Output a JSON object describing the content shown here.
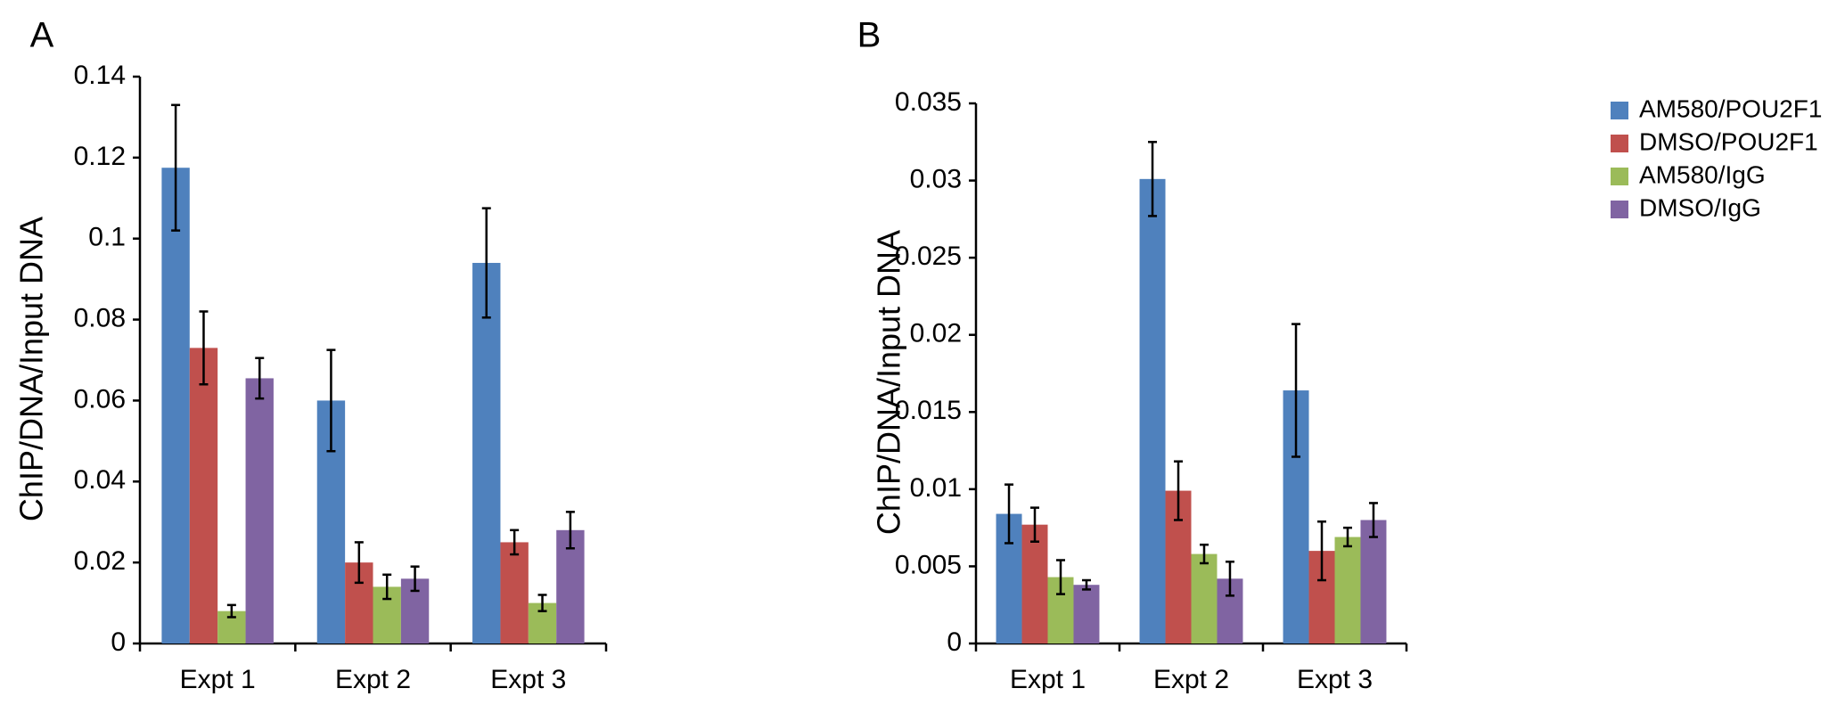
{
  "chart_data": [
    {
      "panel": "A",
      "type": "bar",
      "ylabel": "ChIP/DNA/Input DNA",
      "xlabel": "",
      "ylim": [
        0,
        0.14
      ],
      "yticks": [
        0,
        0.02,
        0.04,
        0.06,
        0.08,
        0.1,
        0.12,
        0.14
      ],
      "ytick_labels": [
        "0",
        "0.02",
        "0.04",
        "0.06",
        "0.08",
        "0.1",
        "0.12",
        "0.14"
      ],
      "categories": [
        "Expt 1",
        "Expt 2",
        "Expt 3"
      ],
      "series": [
        {
          "name": "AM580/POU2F1",
          "color": "#4F81BD",
          "values": [
            0.1175,
            0.06,
            0.094
          ],
          "errors": [
            0.0155,
            0.0125,
            0.0135
          ]
        },
        {
          "name": "DMSO/POU2F1",
          "color": "#C0504D",
          "values": [
            0.073,
            0.02,
            0.025
          ],
          "errors": [
            0.009,
            0.005,
            0.003
          ]
        },
        {
          "name": "AM580/IgG",
          "color": "#9BBB59",
          "values": [
            0.008,
            0.014,
            0.01
          ],
          "errors": [
            0.0015,
            0.003,
            0.002
          ]
        },
        {
          "name": "DMSO/IgG",
          "color": "#8064A2",
          "values": [
            0.0655,
            0.016,
            0.028
          ],
          "errors": [
            0.005,
            0.003,
            0.0045
          ]
        }
      ]
    },
    {
      "panel": "B",
      "type": "bar",
      "ylabel": "ChIP/DNA/Input DNA",
      "xlabel": "",
      "ylim": [
        0,
        0.035
      ],
      "yticks": [
        0,
        0.005,
        0.01,
        0.015,
        0.02,
        0.025,
        0.03,
        0.035
      ],
      "ytick_labels": [
        "0",
        "0.005",
        "0.01",
        "0.015",
        "0.02",
        "0.025",
        "0.03",
        "0.035"
      ],
      "categories": [
        "Expt 1",
        "Expt 2",
        "Expt 3"
      ],
      "legend_position": "top-right",
      "series": [
        {
          "name": "AM580/POU2F1",
          "color": "#4F81BD",
          "values": [
            0.0084,
            0.0301,
            0.0164
          ],
          "errors": [
            0.0019,
            0.0024,
            0.0043
          ]
        },
        {
          "name": "DMSO/POU2F1",
          "color": "#C0504D",
          "values": [
            0.0077,
            0.0099,
            0.006
          ],
          "errors": [
            0.0011,
            0.0019,
            0.0019
          ]
        },
        {
          "name": "AM580/IgG",
          "color": "#9BBB59",
          "values": [
            0.0043,
            0.0058,
            0.0069
          ],
          "errors": [
            0.0011,
            0.0006,
            0.0006
          ]
        },
        {
          "name": "DMSO/IgG",
          "color": "#8064A2",
          "values": [
            0.0038,
            0.0042,
            0.008
          ],
          "errors": [
            0.0003,
            0.0011,
            0.0011
          ]
        }
      ]
    }
  ]
}
